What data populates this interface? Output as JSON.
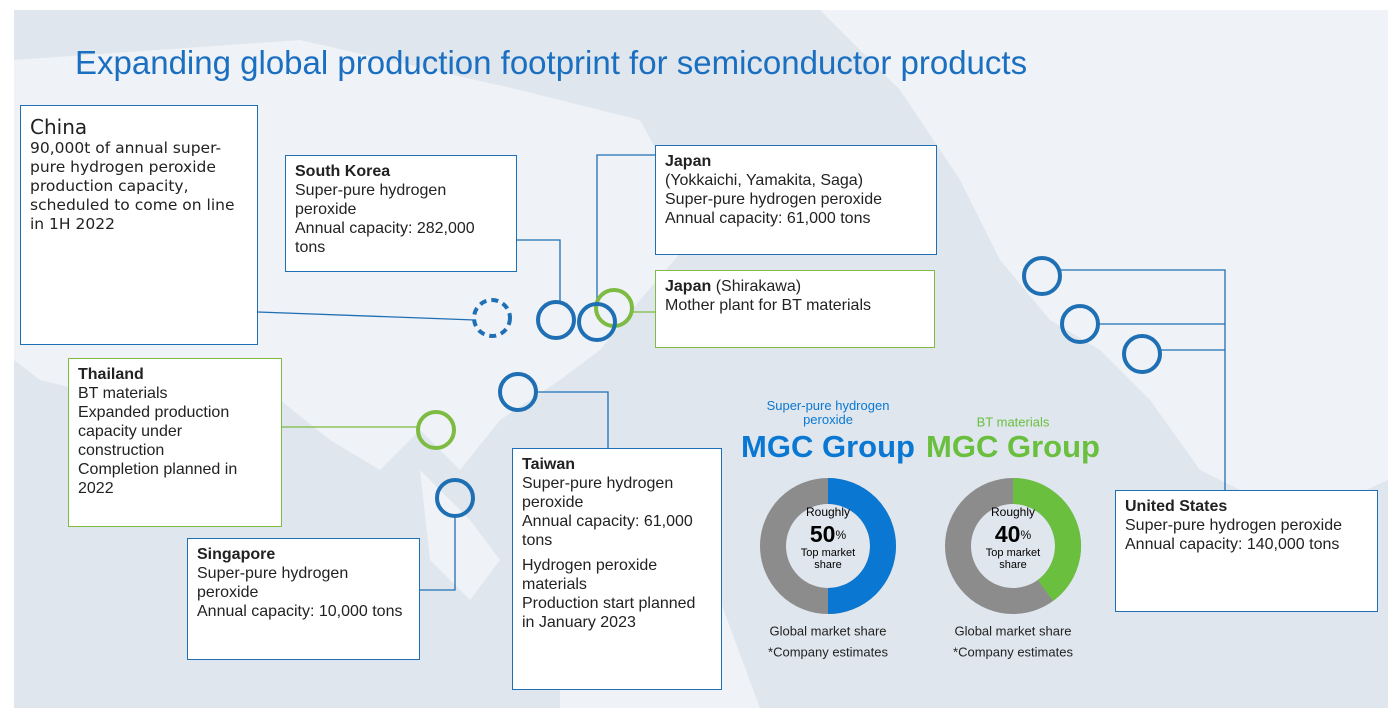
{
  "title": "Expanding global production footprint for semiconductor products",
  "sites": [
    {
      "name": "China",
      "lines": [
        "90,000t of annual super-pure hydrogen peroxide production capacity, scheduled to come on line in 1H 2022"
      ]
    },
    {
      "name": "South Korea",
      "lines": [
        "Super-pure hydrogen peroxide",
        "Annual capacity: 282,000 tons"
      ]
    },
    {
      "name": "Japan",
      "lines": [
        "(Yokkaichi, Yamakita, Saga)",
        "Super-pure hydrogen peroxide",
        "Annual capacity: 61,000 tons"
      ]
    },
    {
      "name": "Japan",
      "qualifier": "(Shirakawa)",
      "lines": [
        "Mother plant for BT materials"
      ]
    },
    {
      "name": "Thailand",
      "lines": [
        "BT materials",
        "Expanded production capacity under construction",
        "Completion planned in 2022"
      ]
    },
    {
      "name": "Singapore",
      "lines": [
        "Super-pure hydrogen peroxide",
        "Annual capacity: 10,000 tons"
      ]
    },
    {
      "name": "Taiwan",
      "lines": [
        "Super-pure hydrogen peroxide",
        "Annual capacity: 61,000 tons",
        "Hydrogen peroxide materials",
        "Production start planned in January 2023"
      ]
    },
    {
      "name": "United States",
      "lines": [
        "Super-pure hydrogen peroxide",
        "Annual capacity: 140,000 tons"
      ]
    }
  ],
  "shares": [
    {
      "product": "Super-pure hydrogen peroxide",
      "group": "MGC Group",
      "qualifier": "Roughly",
      "value": 50,
      "unit": "%",
      "caption": "Top market share",
      "footnote": [
        "Global market share",
        "*Company estimates"
      ],
      "color": "#0a78d2"
    },
    {
      "product": "BT materials",
      "group": "MGC Group",
      "qualifier": "Roughly",
      "value": 40,
      "unit": "%",
      "caption": "Top market share",
      "footnote": [
        "Global market share",
        "*Company estimates"
      ],
      "color": "#6abf3e"
    }
  ]
}
